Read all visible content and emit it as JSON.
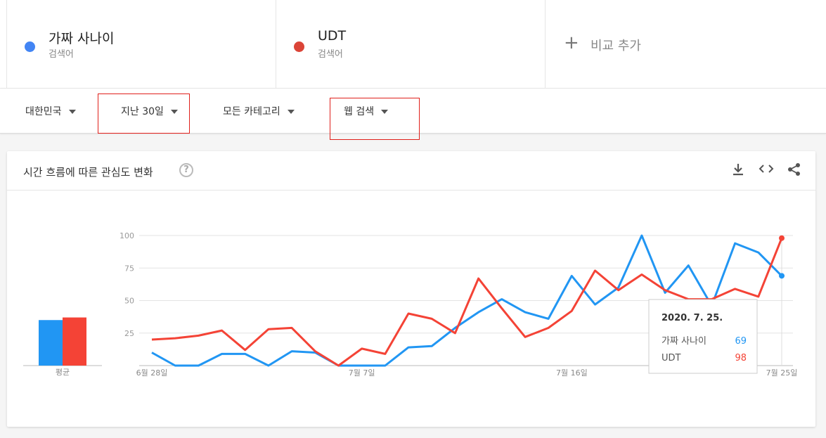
{
  "terms": [
    {
      "name": "가짜 사나이",
      "sub": "검색어",
      "color": "#4285f4"
    },
    {
      "name": "UDT",
      "sub": "검색어",
      "color": "#db4437"
    }
  ],
  "add_compare": {
    "icon": "plus-icon",
    "label": "비교 추가"
  },
  "filters": {
    "region": "대한민국",
    "period": "지난 30일",
    "category": "모든 카테고리",
    "search_type": "웹 검색"
  },
  "card": {
    "title": "시간 흐름에 따른 관심도 변화",
    "help_icon": "?",
    "tools": [
      "download-icon",
      "embed-icon",
      "share-icon"
    ]
  },
  "tooltip": {
    "date": "2020. 7. 25.",
    "rows": [
      {
        "name": "가짜 사나이",
        "value": "69",
        "color": "#2196f3"
      },
      {
        "name": "UDT",
        "value": "98",
        "color": "#f44336"
      }
    ]
  },
  "chart_data": {
    "type": "line",
    "x": [
      "6월 28일",
      "6월 29일",
      "6월 30일",
      "7월 1일",
      "7월 2일",
      "7월 3일",
      "7월 4일",
      "7월 5일",
      "7월 6일",
      "7월 7일",
      "7월 8일",
      "7월 9일",
      "7월 10일",
      "7월 11일",
      "7월 12일",
      "7월 13일",
      "7월 14일",
      "7월 15일",
      "7월 16일",
      "7월 17일",
      "7월 18일",
      "7월 19일",
      "7월 20일",
      "7월 21일",
      "7월 22일",
      "7월 23일",
      "7월 24일",
      "7월 25일"
    ],
    "x_tick_labels": [
      "6월 28일",
      "7월 7일",
      "7월 16일",
      "7월 25일"
    ],
    "y_ticks": [
      25,
      50,
      75,
      100
    ],
    "ylim": [
      0,
      100
    ],
    "grid": true,
    "series": [
      {
        "name": "가짜 사나이",
        "color": "#2196f3",
        "values": [
          10,
          0,
          0,
          9,
          9,
          0,
          11,
          10,
          0,
          0,
          0,
          14,
          15,
          29,
          41,
          51,
          41,
          36,
          69,
          47,
          60,
          100,
          56,
          77,
          46,
          94,
          87,
          69
        ]
      },
      {
        "name": "UDT",
        "color": "#f44336",
        "values": [
          20,
          21,
          23,
          27,
          12,
          28,
          29,
          11,
          0,
          13,
          9,
          40,
          36,
          25,
          67,
          44,
          22,
          29,
          42,
          73,
          58,
          70,
          58,
          51,
          51,
          59,
          53,
          98
        ]
      }
    ],
    "average_label": "평균",
    "averages": [
      35,
      37
    ]
  }
}
